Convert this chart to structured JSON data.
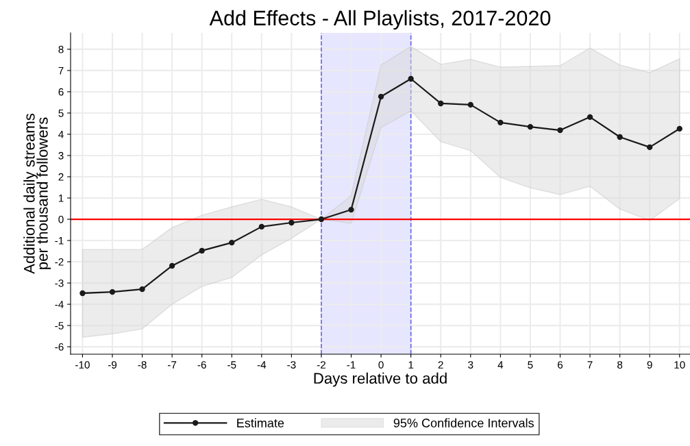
{
  "chart_data": {
    "type": "line",
    "title": "Add Effects - All Playlists, 2017-2020",
    "xlabel": "Days relative to add",
    "ylabel": "Additional daily streams\nper thousand followers",
    "x": [
      -10,
      -9,
      -8,
      -7,
      -6,
      -5,
      -4,
      -3,
      -2,
      -1,
      0,
      1,
      2,
      3,
      4,
      5,
      6,
      7,
      8,
      9,
      10
    ],
    "series": [
      {
        "name": "Estimate",
        "color": "#1a1a1a",
        "marker": "circle",
        "values": [
          -3.48,
          -3.42,
          -3.29,
          -2.19,
          -1.48,
          -1.1,
          -0.35,
          -0.16,
          0,
          0.45,
          5.77,
          6.61,
          5.45,
          5.39,
          4.55,
          4.35,
          4.19,
          4.81,
          3.87,
          3.39,
          4.26
        ]
      },
      {
        "name": "95% Confidence Intervals",
        "type": "area",
        "color": "#d9d9d9",
        "values": [
          null,
          null,
          null,
          null,
          null,
          null,
          null,
          null,
          null,
          null,
          null,
          null,
          null,
          null,
          null,
          null,
          null,
          null,
          null,
          null,
          null
        ],
        "lower": [
          -5.55,
          -5.39,
          -5.16,
          -4.0,
          -3.16,
          -2.74,
          -1.68,
          -0.9,
          0,
          -0.19,
          4.32,
          5.1,
          3.65,
          3.23,
          1.97,
          1.48,
          1.16,
          1.55,
          0.48,
          -0.06,
          0.97
        ],
        "upper": [
          -1.42,
          -1.42,
          -1.42,
          -0.39,
          0.19,
          0.58,
          0.94,
          0.58,
          0,
          1.1,
          7.26,
          8.13,
          7.29,
          7.52,
          7.16,
          7.19,
          7.23,
          8.06,
          7.26,
          6.9,
          7.55
        ]
      }
    ],
    "xlim": [
      -10.4,
      10.35
    ],
    "xticks": [
      -10,
      -9,
      -8,
      -7,
      -6,
      -5,
      -4,
      -3,
      -2,
      -1,
      0,
      1,
      2,
      3,
      4,
      5,
      6,
      7,
      8,
      9,
      10
    ],
    "ylim": [
      -6.35,
      8.77
    ],
    "yticks": [
      -6,
      -5,
      -4,
      -3,
      -2,
      -1,
      0,
      1,
      2,
      3,
      4,
      5,
      6,
      7,
      8
    ],
    "ref_lines": [
      {
        "axis": "y",
        "value": 0,
        "color": "#ff0000",
        "line_style": "solid"
      }
    ],
    "bands": [
      {
        "axis": "x",
        "from": -2,
        "to": 1,
        "color": "#e6e6ff"
      }
    ],
    "grid": true,
    "legend": "bottom"
  }
}
